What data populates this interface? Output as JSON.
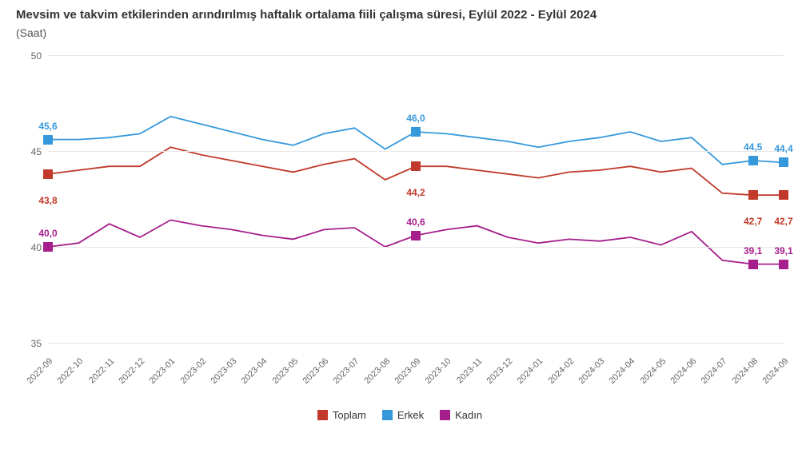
{
  "title": "Mevsim ve takvim etkilerinden arındırılmış haftalık ortalama fiili çalışma süresi, Eylül 2022 - Eylül 2024",
  "subtitle": "(Saat)",
  "chart": {
    "type": "line",
    "xlabels": [
      "2022-09",
      "2022-10",
      "2022-11",
      "2022-12",
      "2023-01",
      "2023-02",
      "2023-03",
      "2023-04",
      "2023-05",
      "2023-06",
      "2023-07",
      "2023-08",
      "2023-09",
      "2023-10",
      "2023-11",
      "2023-12",
      "2024-01",
      "2024-02",
      "2024-03",
      "2024-04",
      "2024-05",
      "2024-06",
      "2024-07",
      "2024-08",
      "2024-09"
    ],
    "ylim": [
      35,
      50
    ],
    "yticks": [
      35,
      40,
      45,
      50
    ],
    "grid_color": "#e6e6e6",
    "background_color": "#ffffff",
    "axis_label_fontsize": 12,
    "tick_label_fontsize": 11,
    "line_width": 1.8,
    "marker_size": 12,
    "series": [
      {
        "key": "erkek",
        "name": "Erkek",
        "color": "#3498db",
        "values": [
          45.6,
          45.6,
          45.7,
          45.9,
          46.8,
          46.4,
          46.0,
          45.6,
          45.3,
          45.9,
          46.2,
          45.1,
          46.0,
          45.9,
          45.7,
          45.5,
          45.2,
          45.5,
          45.7,
          46.0,
          45.5,
          45.7,
          44.3,
          44.5,
          44.4
        ],
        "marker_indices": [
          0,
          12,
          23,
          24
        ],
        "label_points": [
          {
            "i": 0,
            "text": "45,6",
            "dy": -10
          },
          {
            "i": 12,
            "text": "46,0",
            "dy": -10
          },
          {
            "i": 23,
            "text": "44,5",
            "dy": -10
          },
          {
            "i": 24,
            "text": "44,4",
            "dy": -10
          }
        ]
      },
      {
        "key": "toplam",
        "name": "Toplam",
        "color": "#c0392b",
        "values": [
          43.8,
          44.0,
          44.2,
          44.2,
          45.2,
          44.8,
          44.5,
          44.2,
          43.9,
          44.3,
          44.6,
          43.5,
          44.2,
          44.2,
          44.0,
          43.8,
          43.6,
          43.9,
          44.0,
          44.2,
          43.9,
          44.1,
          42.8,
          42.7,
          42.7
        ],
        "marker_indices": [
          0,
          12,
          23,
          24
        ],
        "label_points": [
          {
            "i": 0,
            "text": "43,8",
            "dy": 14
          },
          {
            "i": 12,
            "text": "44,2",
            "dy": 14
          },
          {
            "i": 23,
            "text": "42,7",
            "dy": 14
          },
          {
            "i": 24,
            "text": "42,7",
            "dy": 14
          }
        ]
      },
      {
        "key": "kadin",
        "name": "Kadın",
        "color": "#a61e8c",
        "values": [
          40.0,
          40.2,
          41.2,
          40.5,
          41.4,
          41.1,
          40.9,
          40.6,
          40.4,
          40.9,
          41.0,
          40.0,
          40.6,
          40.9,
          41.1,
          40.5,
          40.2,
          40.4,
          40.3,
          40.5,
          40.1,
          40.8,
          39.3,
          39.1,
          39.1
        ],
        "marker_indices": [
          0,
          12,
          23,
          24
        ],
        "label_points": [
          {
            "i": 0,
            "text": "40,0",
            "dy": -10
          },
          {
            "i": 12,
            "text": "40,6",
            "dy": -10
          },
          {
            "i": 23,
            "text": "39,1",
            "dy": -10
          },
          {
            "i": 24,
            "text": "39,1",
            "dy": -10
          }
        ]
      }
    ],
    "legend": [
      {
        "label": "Toplam",
        "color": "#c0392b"
      },
      {
        "label": "Erkek",
        "color": "#3498db"
      },
      {
        "label": "Kadın",
        "color": "#a61e8c"
      }
    ]
  }
}
